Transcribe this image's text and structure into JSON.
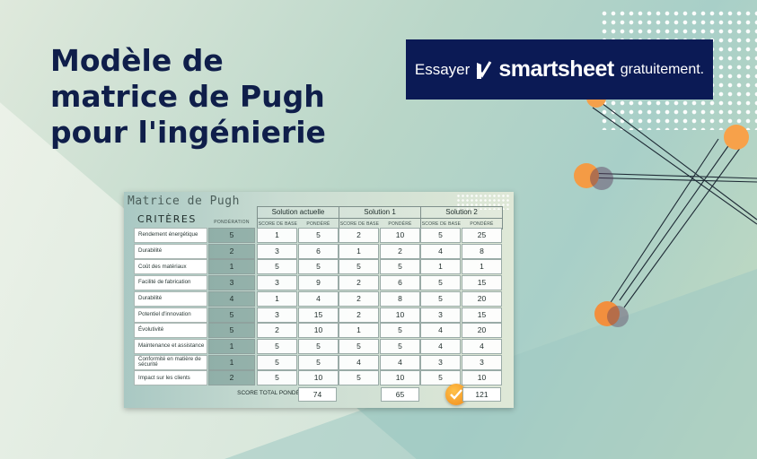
{
  "headline": {
    "line1": "Modèle de",
    "line2": "matrice de Pugh",
    "line3": "pour l'ingénierie"
  },
  "cta": {
    "prefix": "Essayer",
    "brand": "smartsheet",
    "suffix": "gratuitement.",
    "bg_color": "#0b1a55"
  },
  "matrix": {
    "title": "Matrice de Pugh",
    "criteria_header": "CRITÈRES",
    "weight_header": "PONDÉRATION",
    "solutions": [
      {
        "name": "Solution actuelle",
        "base_label": "SCORE DE BASE",
        "weighted_label": "PONDÉRÉ"
      },
      {
        "name": "Solution 1",
        "base_label": "SCORE DE BASE",
        "weighted_label": "PONDÉRÉ"
      },
      {
        "name": "Solution 2",
        "base_label": "SCORE DE BASE",
        "weighted_label": "PONDÉRÉ"
      }
    ],
    "rows": [
      {
        "criterion": "Rendement énergétique",
        "weight": "5",
        "s0b": "1",
        "s0w": "5",
        "s1b": "2",
        "s1w": "10",
        "s2b": "5",
        "s2w": "25"
      },
      {
        "criterion": "Durabilité",
        "weight": "2",
        "s0b": "3",
        "s0w": "6",
        "s1b": "1",
        "s1w": "2",
        "s2b": "4",
        "s2w": "8"
      },
      {
        "criterion": "Coût des matériaux",
        "weight": "1",
        "s0b": "5",
        "s0w": "5",
        "s1b": "5",
        "s1w": "5",
        "s2b": "1",
        "s2w": "1"
      },
      {
        "criterion": "Facilité de fabrication",
        "weight": "3",
        "s0b": "3",
        "s0w": "9",
        "s1b": "2",
        "s1w": "6",
        "s2b": "5",
        "s2w": "15"
      },
      {
        "criterion": "Durabilité",
        "weight": "4",
        "s0b": "1",
        "s0w": "4",
        "s1b": "2",
        "s1w": "8",
        "s2b": "5",
        "s2w": "20"
      },
      {
        "criterion": "Potentiel d'innovation",
        "weight": "5",
        "s0b": "3",
        "s0w": "15",
        "s1b": "2",
        "s1w": "10",
        "s2b": "3",
        "s2w": "15"
      },
      {
        "criterion": "Évolutivité",
        "weight": "5",
        "s0b": "2",
        "s0w": "10",
        "s1b": "1",
        "s1w": "5",
        "s2b": "4",
        "s2w": "20"
      },
      {
        "criterion": "Maintenance et assistance",
        "weight": "1",
        "s0b": "5",
        "s0w": "5",
        "s1b": "5",
        "s1w": "5",
        "s2b": "4",
        "s2w": "4"
      },
      {
        "criterion": "Conformité en matière de sécurité",
        "weight": "1",
        "s0b": "5",
        "s0w": "5",
        "s1b": "4",
        "s1w": "4",
        "s2b": "3",
        "s2w": "3"
      },
      {
        "criterion": "Impact sur les clients",
        "weight": "2",
        "s0b": "5",
        "s0w": "10",
        "s1b": "5",
        "s1w": "10",
        "s2b": "5",
        "s2w": "10"
      }
    ],
    "total_label": "SCORE TOTAL PONDÉRÉ",
    "totals": [
      "74",
      "65",
      "121"
    ],
    "winner_icon": "checkmark-icon"
  }
}
